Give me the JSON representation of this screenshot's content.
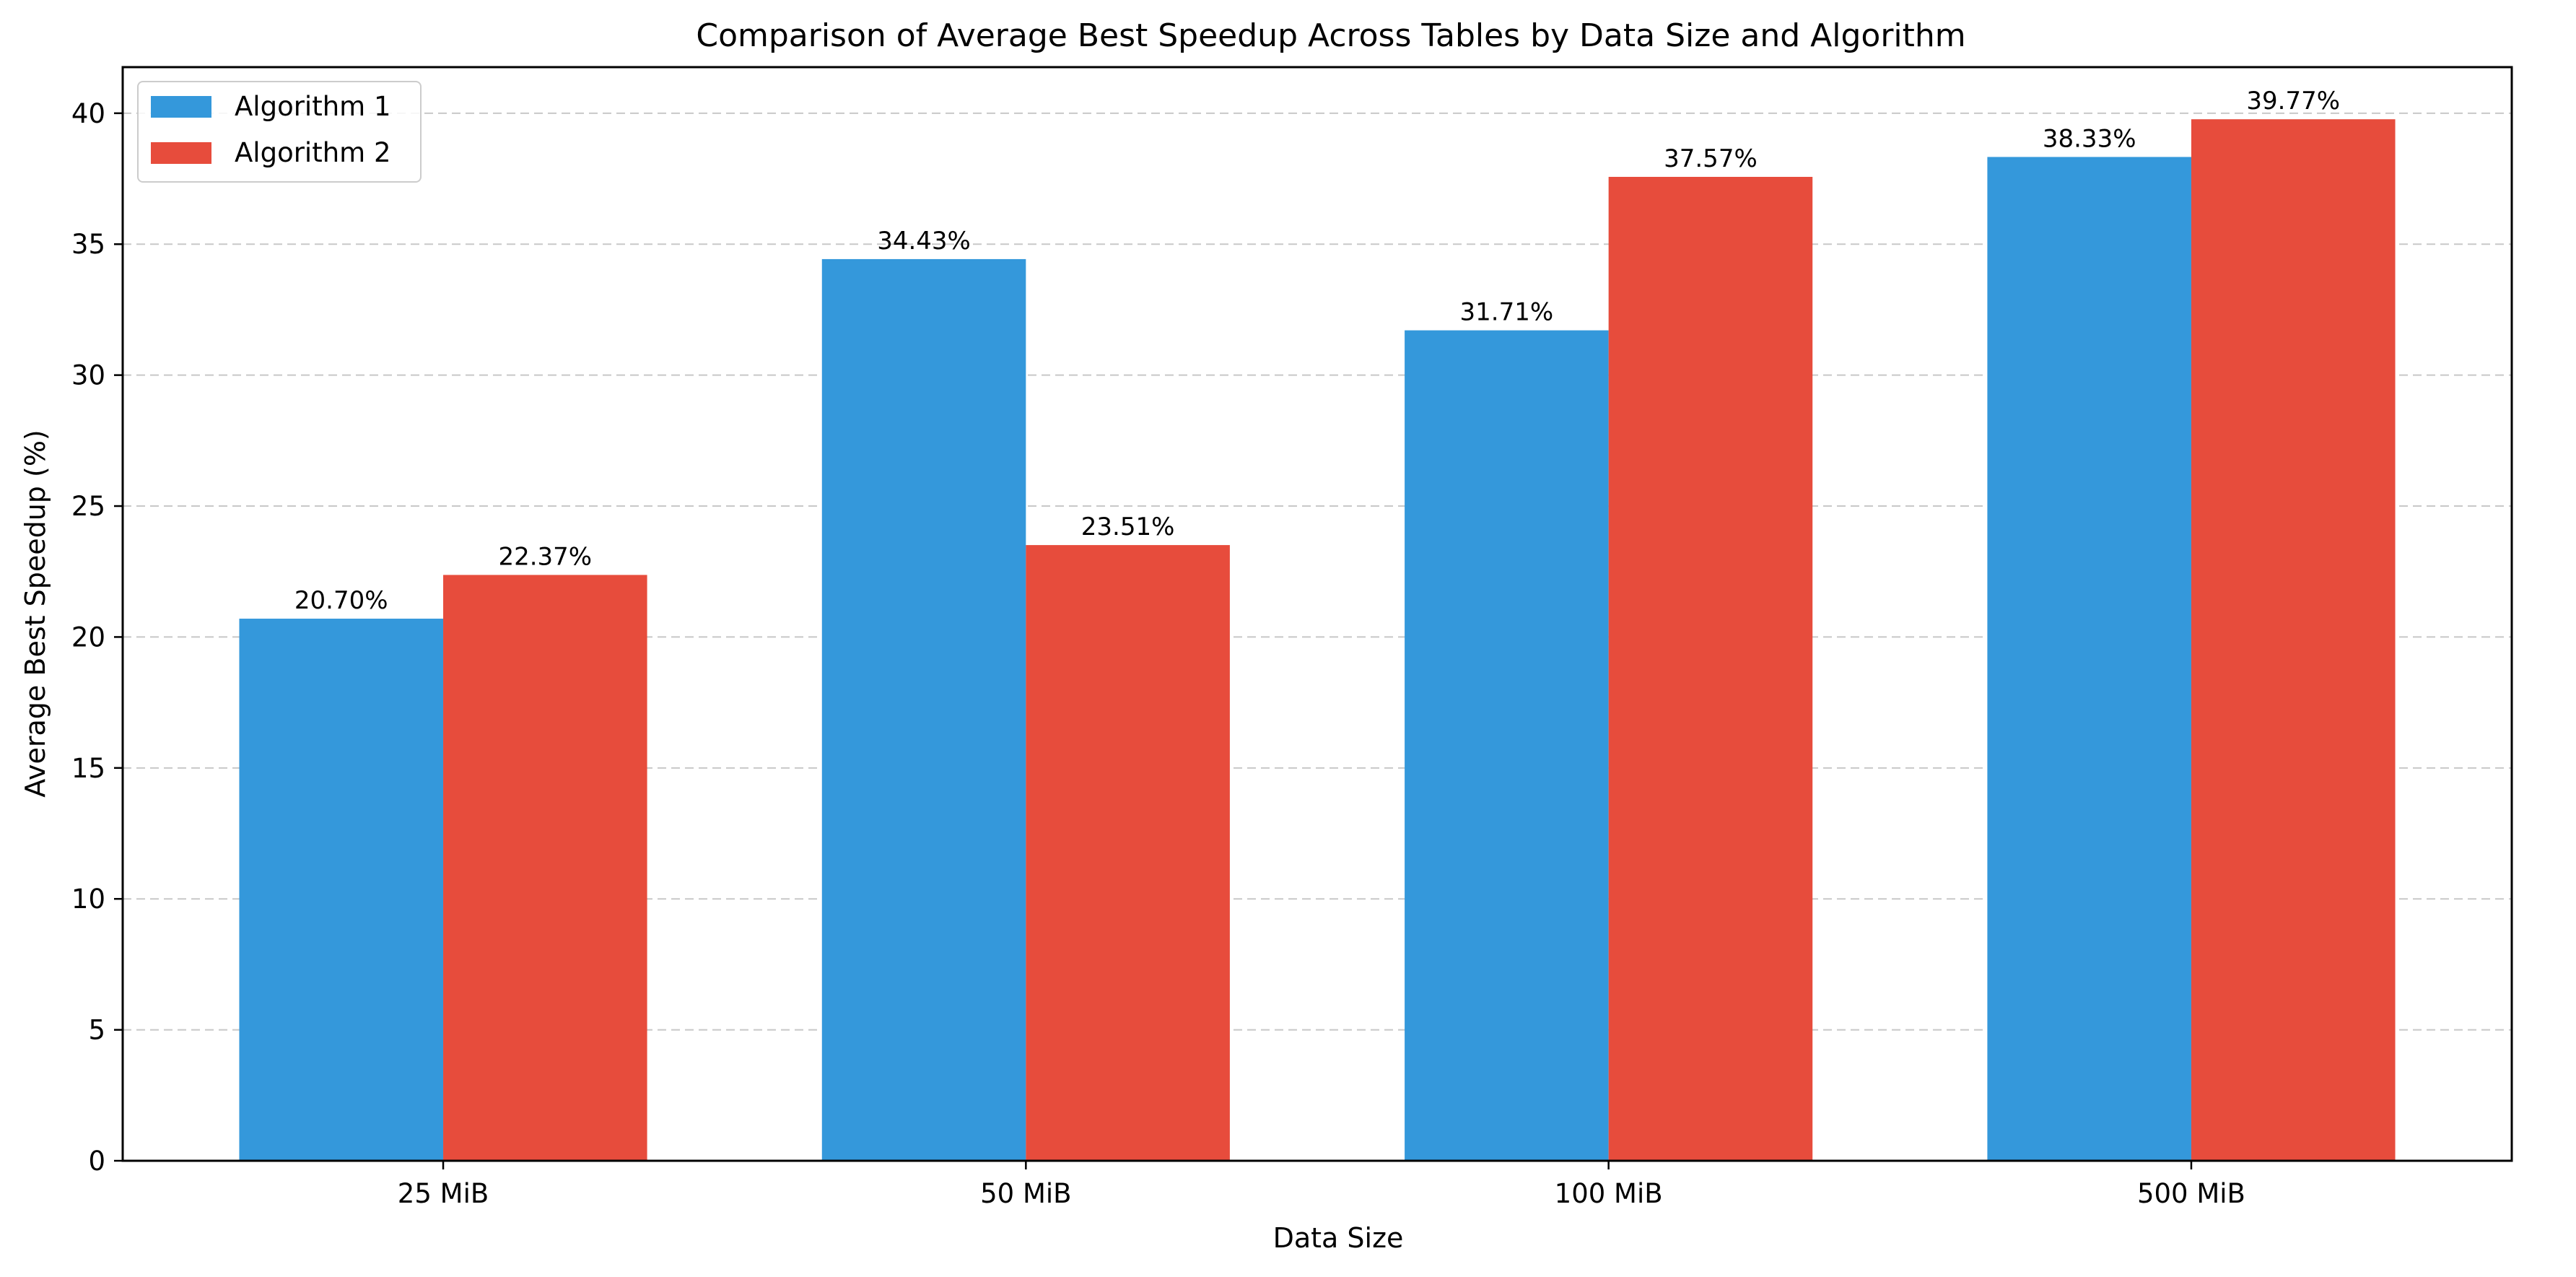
{
  "chart_data": {
    "type": "bar",
    "title": "Comparison of Average Best Speedup Across Tables by Data Size and Algorithm",
    "xlabel": "Data Size",
    "ylabel": "Average Best Speedup (%)",
    "categories": [
      "25 MiB",
      "50 MiB",
      "100 MiB",
      "500 MiB"
    ],
    "series": [
      {
        "name": "Algorithm 1",
        "color": "#3498db",
        "values": [
          20.7,
          34.43,
          31.71,
          38.33
        ],
        "labels": [
          "20.70%",
          "34.43%",
          "31.71%",
          "38.33%"
        ]
      },
      {
        "name": "Algorithm 2",
        "color": "#e74c3c",
        "values": [
          22.37,
          23.51,
          37.57,
          39.77
        ],
        "labels": [
          "22.37%",
          "23.51%",
          "37.57%",
          "39.77%"
        ]
      }
    ],
    "ylim": [
      0,
      41.76
    ],
    "yticks": [
      0,
      5,
      10,
      15,
      20,
      25,
      30,
      35,
      40
    ],
    "grid": "horizontal-dashed",
    "legend_position": "top-left"
  }
}
